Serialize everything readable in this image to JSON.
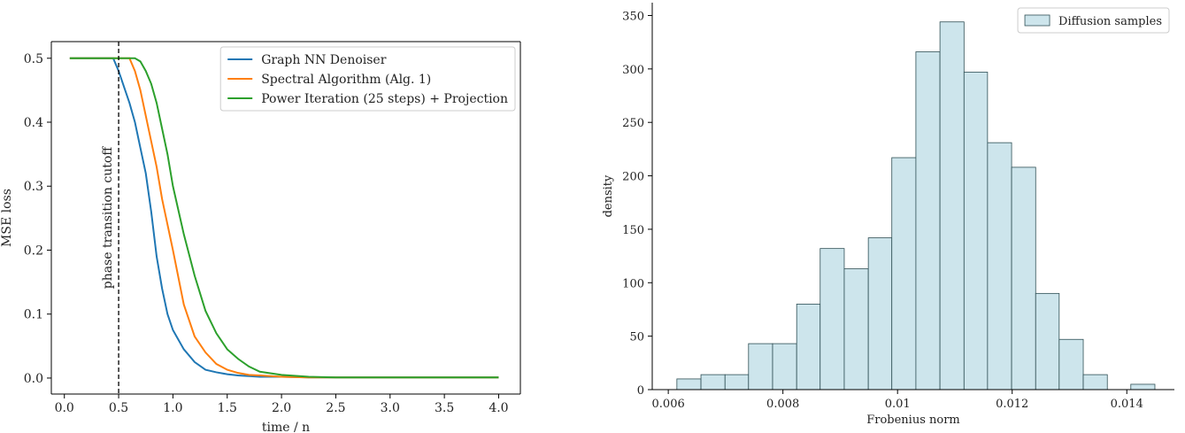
{
  "chart_data": [
    {
      "type": "line",
      "xlabel": "time / n",
      "ylabel": "MSE loss",
      "x": [
        0.05,
        0.25,
        0.45,
        0.5,
        0.55,
        0.6,
        0.65,
        0.7,
        0.75,
        0.8,
        0.85,
        0.9,
        0.95,
        1.0,
        1.1,
        1.2,
        1.3,
        1.4,
        1.5,
        1.6,
        1.7,
        1.8,
        2.0,
        2.25,
        2.5,
        3.0,
        3.5,
        4.0
      ],
      "series": [
        {
          "name": "Graph NN Denoiser",
          "color": "#1f77b4",
          "values": [
            0.5,
            0.5,
            0.5,
            0.48,
            0.455,
            0.43,
            0.4,
            0.36,
            0.32,
            0.26,
            0.19,
            0.14,
            0.1,
            0.075,
            0.045,
            0.025,
            0.013,
            0.009,
            0.006,
            0.004,
            0.003,
            0.002,
            0.002,
            0.001,
            0.001,
            0.001,
            0.001,
            0.001
          ]
        },
        {
          "name": "Spectral Algorithm (Alg. 1)",
          "color": "#ff7f0e",
          "values": [
            0.5,
            0.5,
            0.5,
            0.5,
            0.5,
            0.5,
            0.48,
            0.45,
            0.41,
            0.37,
            0.33,
            0.28,
            0.24,
            0.2,
            0.115,
            0.065,
            0.04,
            0.022,
            0.013,
            0.008,
            0.005,
            0.004,
            0.002,
            0.001,
            0.001,
            0.001,
            0.001,
            0.001
          ]
        },
        {
          "name": "Power Iteration (25 steps) + Projection",
          "color": "#2ca02c",
          "values": [
            0.5,
            0.5,
            0.5,
            0.5,
            0.5,
            0.5,
            0.5,
            0.495,
            0.48,
            0.46,
            0.43,
            0.39,
            0.35,
            0.3,
            0.225,
            0.16,
            0.105,
            0.07,
            0.045,
            0.03,
            0.018,
            0.01,
            0.005,
            0.002,
            0.001,
            0.001,
            0.001,
            0.001
          ]
        }
      ],
      "xlim": [
        -0.12,
        4.2
      ],
      "xticks": [
        {
          "value": 0,
          "label": "0.0"
        },
        {
          "value": 0.5,
          "label": "0.5"
        },
        {
          "value": 1,
          "label": "1.0"
        },
        {
          "value": 1.5,
          "label": "1.5"
        },
        {
          "value": 2,
          "label": "2.0"
        },
        {
          "value": 2.5,
          "label": "2.5"
        },
        {
          "value": 3,
          "label": "3.0"
        },
        {
          "value": 3.5,
          "label": "3.5"
        },
        {
          "value": 4,
          "label": "4.0"
        }
      ],
      "ylim": [
        -0.025,
        0.526
      ],
      "yticks": [
        {
          "value": 0,
          "label": "0.0"
        },
        {
          "value": 0.1,
          "label": "0.1"
        },
        {
          "value": 0.2,
          "label": "0.2"
        },
        {
          "value": 0.3,
          "label": "0.3"
        },
        {
          "value": 0.4,
          "label": "0.4"
        },
        {
          "value": 0.5,
          "label": "0.5"
        }
      ],
      "annotation": {
        "x": 0.5,
        "text": "phase transition cutoff"
      },
      "legend": "upper right",
      "spines": [
        "left",
        "bottom",
        "top",
        "right"
      ]
    },
    {
      "type": "histogram",
      "xlabel": "Frobenius norm",
      "ylabel": "density",
      "bins": [
        0.00615,
        0.00657,
        0.00699,
        0.0074,
        0.00782,
        0.00824,
        0.00865,
        0.00907,
        0.00949,
        0.0099,
        0.01032,
        0.01074,
        0.01116,
        0.01157,
        0.01199,
        0.01241,
        0.01282,
        0.01324,
        0.01366,
        0.01407,
        0.01449
      ],
      "series": [
        {
          "name": "Diffusion samples",
          "color": "#cde5ec",
          "edgecolor": "#2f4f55",
          "values": [
            10,
            14,
            14,
            43,
            43,
            80,
            132,
            113,
            142,
            217,
            316,
            344,
            297,
            231,
            208,
            90,
            47,
            14,
            0,
            5
          ]
        }
      ],
      "xlim": [
        0.00572,
        0.01483
      ],
      "xticks": [
        0.006,
        0.008,
        0.01,
        0.012,
        0.014
      ],
      "ylim": [
        0,
        362
      ],
      "yticks": [
        0,
        50,
        100,
        150,
        200,
        250,
        300,
        350
      ],
      "legend": "upper right",
      "spines": [
        "left",
        "bottom"
      ]
    }
  ]
}
